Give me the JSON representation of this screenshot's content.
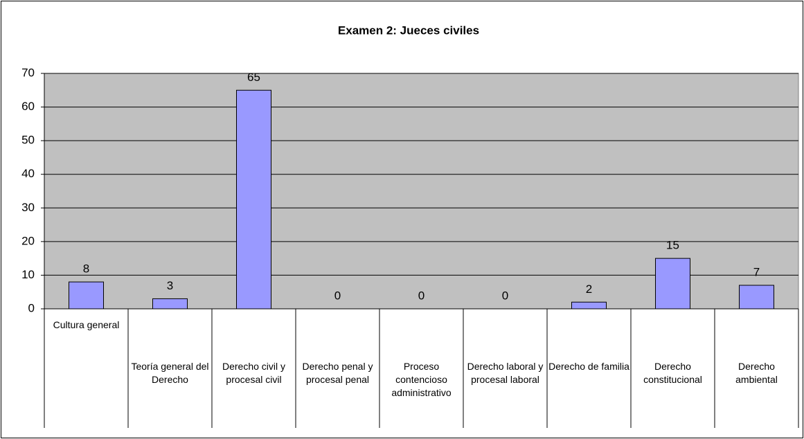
{
  "chart_data": {
    "type": "bar",
    "title": "Examen 2: Jueces civiles",
    "categories": [
      "Cultura general",
      "Teoría general del Derecho",
      "Derecho civil y procesal civil",
      "Derecho penal y procesal penal",
      "Proceso contencioso administrativo",
      "Derecho laboral y procesal laboral",
      "Derecho de familia",
      "Derecho constitucional",
      "Derecho ambiental"
    ],
    "values": [
      8,
      3,
      65,
      0,
      0,
      0,
      2,
      15,
      7
    ],
    "color": "#9999ff",
    "plot_background": "#c0c0c0",
    "ylim": [
      0,
      70
    ],
    "yticks": [
      0,
      10,
      20,
      30,
      40,
      50,
      60,
      70
    ],
    "grid": true
  }
}
